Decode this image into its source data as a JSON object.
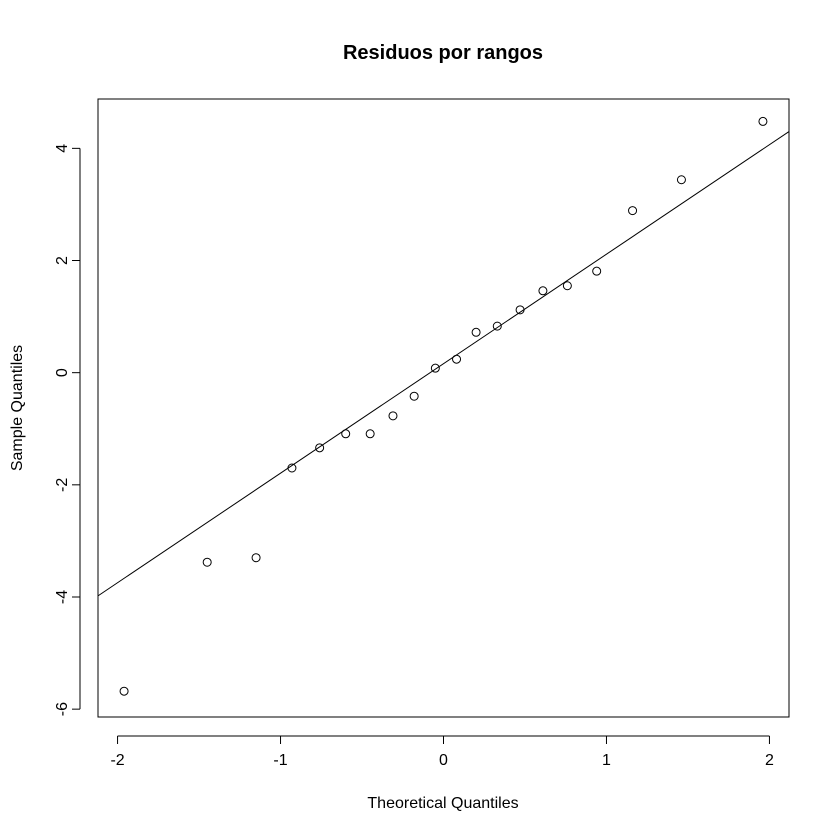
{
  "chart_data": {
    "type": "scatter",
    "title": "Residuos por rangos",
    "xlabel": "Theoretical Quantiles",
    "ylabel": "Sample Quantiles",
    "xticks": [
      -2,
      -1,
      0,
      1,
      2
    ],
    "yticks": [
      -6,
      -4,
      -2,
      0,
      2,
      4
    ],
    "xlim": [
      -2.12,
      2.12
    ],
    "ylim": [
      -6.14,
      4.88
    ],
    "grid": false,
    "points": [
      {
        "x": -1.96,
        "y": -5.68
      },
      {
        "x": -1.45,
        "y": -3.38
      },
      {
        "x": -1.15,
        "y": -3.3
      },
      {
        "x": -0.93,
        "y": -1.7
      },
      {
        "x": -0.76,
        "y": -1.34
      },
      {
        "x": -0.6,
        "y": -1.09
      },
      {
        "x": -0.45,
        "y": -1.09
      },
      {
        "x": -0.31,
        "y": -0.77
      },
      {
        "x": -0.18,
        "y": -0.42
      },
      {
        "x": -0.05,
        "y": 0.08
      },
      {
        "x": 0.08,
        "y": 0.24
      },
      {
        "x": 0.2,
        "y": 0.72
      },
      {
        "x": 0.33,
        "y": 0.83
      },
      {
        "x": 0.47,
        "y": 1.12
      },
      {
        "x": 0.61,
        "y": 1.46
      },
      {
        "x": 0.76,
        "y": 1.55
      },
      {
        "x": 0.94,
        "y": 1.81
      },
      {
        "x": 1.16,
        "y": 2.89
      },
      {
        "x": 1.46,
        "y": 3.44
      },
      {
        "x": 1.96,
        "y": 4.48
      }
    ],
    "reference_line": {
      "x1": -2.12,
      "y1": -3.98,
      "x2": 2.12,
      "y2": 4.3
    }
  }
}
